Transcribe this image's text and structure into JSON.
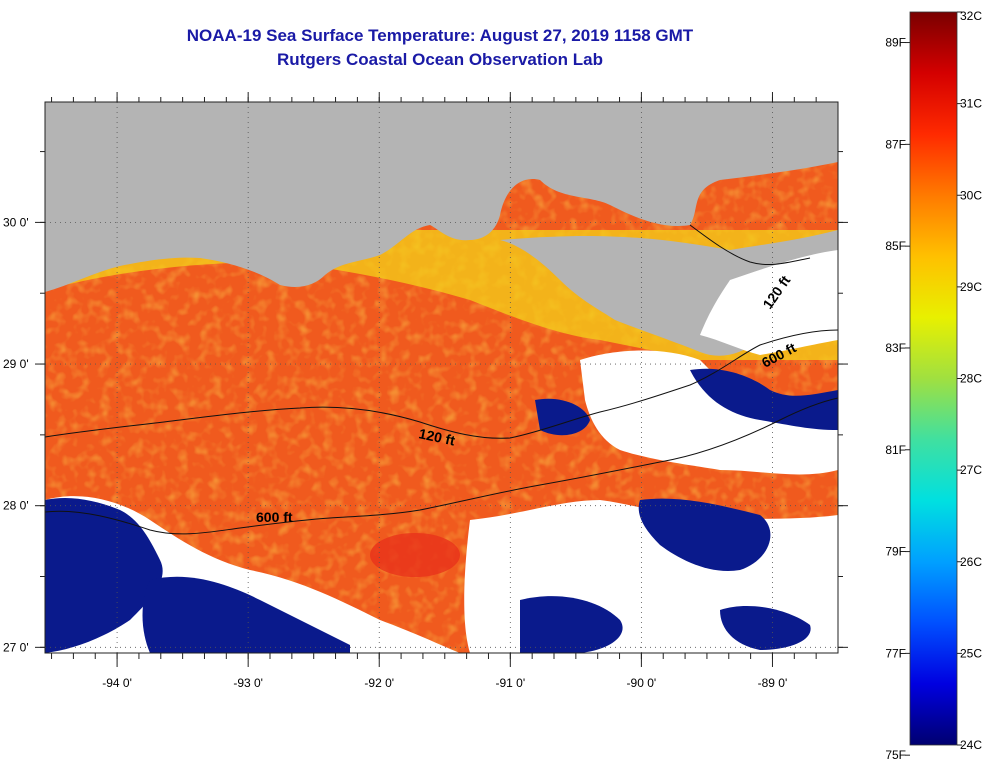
{
  "title": {
    "line1": "NOAA-19 Sea Surface Temperature:  August 27, 2019 1158 GMT",
    "line2": "Rutgers Coastal Ocean Observation Lab"
  },
  "map": {
    "lon_labels": [
      "-94 0'",
      "-93 0'",
      "-92 0'",
      "-91 0'",
      "-90 0'",
      "-89 0'"
    ],
    "lat_labels": [
      "30 0'",
      "29 0'",
      "28 0'",
      "27 0'"
    ],
    "lon_range": [
      -94.55,
      -88.5
    ],
    "lat_range": [
      26.96,
      30.85
    ],
    "lon_ticks": [
      -94,
      -93,
      -92,
      -91,
      -90,
      -89
    ],
    "lat_ticks": [
      30,
      29,
      28,
      27
    ],
    "contour_labels": {
      "c120_west": "120 ft",
      "c600_west": "600 ft",
      "c120_east": "120 ft",
      "c600_east": "600 ft"
    },
    "colors": {
      "land": "#b4b4b4",
      "cloud": "#ffffff",
      "warm": "#f05a1e",
      "cool": "#0a1a8c"
    }
  },
  "colorbar": {
    "celsius_labels": [
      "32C",
      "31C",
      "30C",
      "29C",
      "28C",
      "27C",
      "26C",
      "25C",
      "24C"
    ],
    "fahrenheit_labels": [
      "89F",
      "87F",
      "85F",
      "83F",
      "81F",
      "79F",
      "77F",
      "75F"
    ],
    "celsius_values": [
      32,
      31,
      30,
      29,
      28,
      27,
      26,
      25,
      24
    ],
    "fahrenheit_values": [
      89,
      87,
      85,
      83,
      81,
      79,
      77,
      75
    ],
    "range_c": [
      24,
      32
    ],
    "gradient_colors": [
      "#7a0000",
      "#d40000",
      "#ff2a00",
      "#ff7a00",
      "#ffc000",
      "#e8f000",
      "#a0e040",
      "#40e0a0",
      "#00e0e0",
      "#00a0ff",
      "#0050ff",
      "#0000e0",
      "#000070"
    ]
  }
}
